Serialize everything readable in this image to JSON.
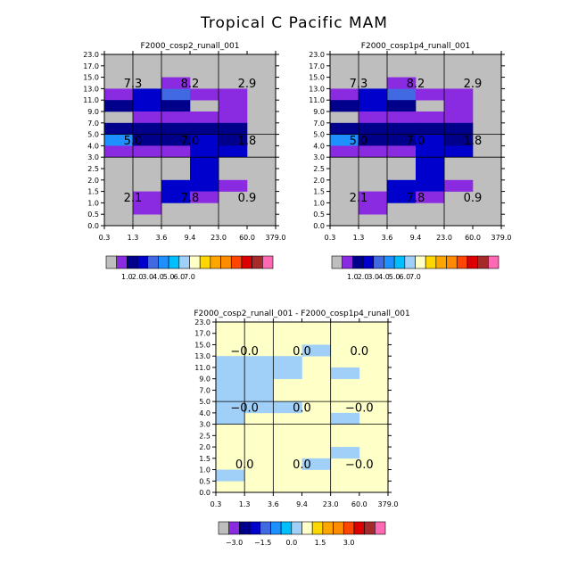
{
  "title": "Tropical C Pacific MAM",
  "colors": {
    "grey": "#bebebe",
    "purple": "#8a2be2",
    "navy": "#00008b",
    "blue": "#0000cd",
    "royal": "#4169e1",
    "dodger": "#1e90ff",
    "sky": "#00bfff",
    "lightblue": "#a0d0f8",
    "cream": "#ffffc8",
    "gold": "#ffd700",
    "orange": "#ffa500",
    "darkorange": "#ff8c00",
    "redorange": "#ff4500",
    "red": "#dd0000",
    "darkred": "#a52a2a",
    "pink": "#ff69b4"
  },
  "chart_data": [
    {
      "type": "heatmap",
      "title": "F2000_cosp2_runall_001",
      "x_ticks": [
        "0.3",
        "1.3",
        "3.6",
        "9.4",
        "23.0",
        "60.0",
        "379.0"
      ],
      "y_ticks": [
        "0.0",
        "0.5",
        "1.0",
        "1.5",
        "2.0",
        "2.5",
        "3.0",
        "4.0",
        "5.0",
        "7.0",
        "9.0",
        "11.0",
        "13.0",
        "15.0",
        "17.0",
        "23.0"
      ],
      "background": "grey",
      "cells": [
        {
          "x": 0,
          "y": 11,
          "c": "purple"
        },
        {
          "x": 1,
          "y": 11,
          "c": "blue"
        },
        {
          "x": 2,
          "y": 11,
          "c": "royal"
        },
        {
          "x": 3,
          "y": 11,
          "c": "purple"
        },
        {
          "x": 4,
          "y": 11,
          "c": "purple"
        },
        {
          "x": 0,
          "y": 10,
          "c": "navy"
        },
        {
          "x": 1,
          "y": 10,
          "c": "blue"
        },
        {
          "x": 2,
          "y": 10,
          "c": "navy"
        },
        {
          "x": 4,
          "y": 10,
          "c": "purple"
        },
        {
          "x": 1,
          "y": 9,
          "c": "purple"
        },
        {
          "x": 2,
          "y": 9,
          "c": "purple"
        },
        {
          "x": 3,
          "y": 9,
          "c": "purple"
        },
        {
          "x": 4,
          "y": 9,
          "c": "purple"
        },
        {
          "x": 0,
          "y": 8,
          "c": "navy"
        },
        {
          "x": 1,
          "y": 8,
          "c": "navy"
        },
        {
          "x": 2,
          "y": 8,
          "c": "navy"
        },
        {
          "x": 3,
          "y": 8,
          "c": "navy"
        },
        {
          "x": 4,
          "y": 8,
          "c": "navy"
        },
        {
          "x": 0,
          "y": 7,
          "c": "dodger"
        },
        {
          "x": 1,
          "y": 7,
          "c": "navy"
        },
        {
          "x": 2,
          "y": 7,
          "c": "navy"
        },
        {
          "x": 3,
          "y": 7,
          "c": "blue"
        },
        {
          "x": 4,
          "y": 7,
          "c": "navy"
        },
        {
          "x": 0,
          "y": 6,
          "c": "purple"
        },
        {
          "x": 1,
          "y": 6,
          "c": "purple"
        },
        {
          "x": 2,
          "y": 6,
          "c": "purple"
        },
        {
          "x": 3,
          "y": 6,
          "c": "blue"
        },
        {
          "x": 4,
          "y": 6,
          "c": "blue"
        },
        {
          "x": 3,
          "y": 5,
          "c": "blue"
        },
        {
          "x": 3,
          "y": 4,
          "c": "blue"
        },
        {
          "x": 2,
          "y": 3,
          "c": "blue"
        },
        {
          "x": 3,
          "y": 3,
          "c": "blue"
        },
        {
          "x": 4,
          "y": 3,
          "c": "purple"
        },
        {
          "x": 1,
          "y": 2,
          "c": "purple"
        },
        {
          "x": 2,
          "y": 2,
          "c": "blue"
        },
        {
          "x": 3,
          "y": 2,
          "c": "purple"
        },
        {
          "x": 1,
          "y": 1,
          "c": "purple"
        },
        {
          "x": 2,
          "y": 12,
          "c": "purple"
        }
      ],
      "values": [
        {
          "text": "7.3",
          "gx": 0,
          "gy": 2
        },
        {
          "text": "8.2",
          "gx": 1,
          "gy": 2
        },
        {
          "text": "2.9",
          "gx": 2,
          "gy": 2
        },
        {
          "text": "5.0",
          "gx": 0,
          "gy": 1
        },
        {
          "text": "7.0",
          "gx": 1,
          "gy": 1
        },
        {
          "text": "1.8",
          "gx": 2,
          "gy": 1
        },
        {
          "text": "2.1",
          "gx": 0,
          "gy": 0
        },
        {
          "text": "7.8",
          "gx": 1,
          "gy": 0
        },
        {
          "text": "0.9",
          "gx": 2,
          "gy": 0
        }
      ]
    },
    {
      "type": "heatmap",
      "title": "F2000_cosp1p4_runall_001",
      "x_ticks": [
        "0.3",
        "1.3",
        "3.6",
        "9.4",
        "23.0",
        "60.0",
        "379.0"
      ],
      "y_ticks": [
        "0.0",
        "0.5",
        "1.0",
        "1.5",
        "2.0",
        "2.5",
        "3.0",
        "4.0",
        "5.0",
        "7.0",
        "9.0",
        "11.0",
        "13.0",
        "15.0",
        "17.0",
        "23.0"
      ],
      "background": "grey",
      "cells": [
        {
          "x": 0,
          "y": 11,
          "c": "purple"
        },
        {
          "x": 1,
          "y": 11,
          "c": "blue"
        },
        {
          "x": 2,
          "y": 11,
          "c": "royal"
        },
        {
          "x": 3,
          "y": 11,
          "c": "purple"
        },
        {
          "x": 4,
          "y": 11,
          "c": "purple"
        },
        {
          "x": 0,
          "y": 10,
          "c": "navy"
        },
        {
          "x": 1,
          "y": 10,
          "c": "blue"
        },
        {
          "x": 2,
          "y": 10,
          "c": "navy"
        },
        {
          "x": 4,
          "y": 10,
          "c": "purple"
        },
        {
          "x": 1,
          "y": 9,
          "c": "purple"
        },
        {
          "x": 2,
          "y": 9,
          "c": "purple"
        },
        {
          "x": 3,
          "y": 9,
          "c": "purple"
        },
        {
          "x": 4,
          "y": 9,
          "c": "purple"
        },
        {
          "x": 0,
          "y": 8,
          "c": "navy"
        },
        {
          "x": 1,
          "y": 8,
          "c": "navy"
        },
        {
          "x": 2,
          "y": 8,
          "c": "navy"
        },
        {
          "x": 3,
          "y": 8,
          "c": "navy"
        },
        {
          "x": 4,
          "y": 8,
          "c": "navy"
        },
        {
          "x": 0,
          "y": 7,
          "c": "dodger"
        },
        {
          "x": 1,
          "y": 7,
          "c": "navy"
        },
        {
          "x": 2,
          "y": 7,
          "c": "navy"
        },
        {
          "x": 3,
          "y": 7,
          "c": "blue"
        },
        {
          "x": 4,
          "y": 7,
          "c": "navy"
        },
        {
          "x": 0,
          "y": 6,
          "c": "purple"
        },
        {
          "x": 1,
          "y": 6,
          "c": "purple"
        },
        {
          "x": 2,
          "y": 6,
          "c": "purple"
        },
        {
          "x": 3,
          "y": 6,
          "c": "blue"
        },
        {
          "x": 4,
          "y": 6,
          "c": "blue"
        },
        {
          "x": 3,
          "y": 5,
          "c": "blue"
        },
        {
          "x": 3,
          "y": 4,
          "c": "blue"
        },
        {
          "x": 2,
          "y": 3,
          "c": "blue"
        },
        {
          "x": 3,
          "y": 3,
          "c": "blue"
        },
        {
          "x": 4,
          "y": 3,
          "c": "purple"
        },
        {
          "x": 1,
          "y": 2,
          "c": "purple"
        },
        {
          "x": 2,
          "y": 2,
          "c": "blue"
        },
        {
          "x": 3,
          "y": 2,
          "c": "purple"
        },
        {
          "x": 1,
          "y": 1,
          "c": "purple"
        },
        {
          "x": 2,
          "y": 12,
          "c": "purple"
        }
      ],
      "values": [
        {
          "text": "7.3",
          "gx": 0,
          "gy": 2
        },
        {
          "text": "8.2",
          "gx": 1,
          "gy": 2
        },
        {
          "text": "2.9",
          "gx": 2,
          "gy": 2
        },
        {
          "text": "5.0",
          "gx": 0,
          "gy": 1
        },
        {
          "text": "7.0",
          "gx": 1,
          "gy": 1
        },
        {
          "text": "1.8",
          "gx": 2,
          "gy": 1
        },
        {
          "text": "2.1",
          "gx": 0,
          "gy": 0
        },
        {
          "text": "7.8",
          "gx": 1,
          "gy": 0
        },
        {
          "text": "0.9",
          "gx": 2,
          "gy": 0
        }
      ]
    },
    {
      "type": "heatmap",
      "title": "F2000_cosp2_runall_001 - F2000_cosp1p4_runall_001",
      "x_ticks": [
        "0.3",
        "1.3",
        "3.6",
        "9.4",
        "23.0",
        "60.0",
        "379.0"
      ],
      "y_ticks": [
        "0.0",
        "0.5",
        "1.0",
        "1.5",
        "2.0",
        "2.5",
        "3.0",
        "4.0",
        "5.0",
        "7.0",
        "9.0",
        "11.0",
        "13.0",
        "15.0",
        "17.0",
        "23.0"
      ],
      "background": "cream",
      "cells": [
        {
          "x": 0,
          "y": 11,
          "c": "lightblue"
        },
        {
          "x": 1,
          "y": 11,
          "c": "lightblue"
        },
        {
          "x": 2,
          "y": 11,
          "c": "lightblue"
        },
        {
          "x": 0,
          "y": 10,
          "c": "lightblue"
        },
        {
          "x": 1,
          "y": 10,
          "c": "lightblue"
        },
        {
          "x": 2,
          "y": 10,
          "c": "lightblue"
        },
        {
          "x": 4,
          "y": 10,
          "c": "lightblue"
        },
        {
          "x": 0,
          "y": 9,
          "c": "lightblue"
        },
        {
          "x": 1,
          "y": 9,
          "c": "lightblue"
        },
        {
          "x": 0,
          "y": 8,
          "c": "lightblue"
        },
        {
          "x": 1,
          "y": 8,
          "c": "lightblue"
        },
        {
          "x": 0,
          "y": 7,
          "c": "lightblue"
        },
        {
          "x": 1,
          "y": 7,
          "c": "lightblue"
        },
        {
          "x": 2,
          "y": 7,
          "c": "lightblue"
        },
        {
          "x": 0,
          "y": 6,
          "c": "lightblue"
        },
        {
          "x": 4,
          "y": 6,
          "c": "lightblue"
        },
        {
          "x": 4,
          "y": 3,
          "c": "lightblue"
        },
        {
          "x": 3,
          "y": 2,
          "c": "lightblue"
        },
        {
          "x": 0,
          "y": 1,
          "c": "lightblue"
        },
        {
          "x": 3,
          "y": 12,
          "c": "lightblue"
        }
      ],
      "values": [
        {
          "text": "−0.0",
          "gx": 0,
          "gy": 2
        },
        {
          "text": "0.0",
          "gx": 1,
          "gy": 2
        },
        {
          "text": "0.0",
          "gx": 2,
          "gy": 2
        },
        {
          "text": "−0.0",
          "gx": 0,
          "gy": 1
        },
        {
          "text": "0.0",
          "gx": 1,
          "gy": 1
        },
        {
          "text": "−0.0",
          "gx": 2,
          "gy": 1
        },
        {
          "text": "0.0",
          "gx": 0,
          "gy": 0
        },
        {
          "text": "0.0",
          "gx": 1,
          "gy": 0
        },
        {
          "text": "−0.0",
          "gx": 2,
          "gy": 0
        }
      ]
    }
  ],
  "colorbars": [
    {
      "colors": [
        "grey",
        "purple",
        "navy",
        "blue",
        "royal",
        "dodger",
        "sky",
        "lightblue",
        "cream",
        "gold",
        "orange",
        "darkorange",
        "redorange",
        "red",
        "darkred",
        "pink"
      ],
      "labels": [
        "1.0",
        "2.0",
        "3.0",
        "4.0",
        "5.0",
        "6.0",
        "7.0"
      ]
    },
    {
      "colors": [
        "grey",
        "purple",
        "navy",
        "blue",
        "royal",
        "dodger",
        "sky",
        "lightblue",
        "cream",
        "gold",
        "orange",
        "darkorange",
        "redorange",
        "red",
        "darkred",
        "pink"
      ],
      "labels": [
        "1.0",
        "2.0",
        "3.0",
        "4.0",
        "5.0",
        "6.0",
        "7.0"
      ]
    },
    {
      "colors": [
        "grey",
        "purple",
        "navy",
        "blue",
        "royal",
        "dodger",
        "sky",
        "lightblue",
        "cream",
        "gold",
        "orange",
        "darkorange",
        "redorange",
        "red",
        "darkred",
        "pink"
      ],
      "labels": [
        "−3.0",
        "−1.5",
        "0.0",
        "1.5",
        "3.0"
      ]
    }
  ]
}
